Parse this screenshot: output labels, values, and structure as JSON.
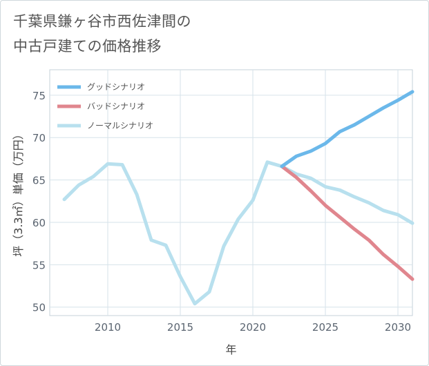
{
  "title": {
    "line1": "千葉県鎌ヶ谷市西佐津間の",
    "line2": "中古戸建ての価格推移"
  },
  "chart_data": {
    "type": "line",
    "xlabel": "年",
    "ylabel": "坪（3.3㎡）単価（万円）",
    "xlim": [
      2006,
      2031
    ],
    "ylim": [
      49,
      78
    ],
    "xticks": [
      2010,
      2015,
      2020,
      2025,
      2030
    ],
    "yticks": [
      50,
      55,
      60,
      65,
      70,
      75
    ],
    "grid": true,
    "legend_position": "top-left",
    "series": [
      {
        "name": "グッドシナリオ",
        "color": "#6bb8ea",
        "x": [
          2022,
          2023,
          2024,
          2025,
          2026,
          2027,
          2028,
          2029,
          2030,
          2031
        ],
        "values": [
          66.6,
          67.8,
          68.4,
          69.3,
          70.7,
          71.5,
          72.5,
          73.5,
          74.4,
          75.4
        ]
      },
      {
        "name": "バッドシナリオ",
        "color": "#e0868e",
        "x": [
          2022,
          2023,
          2024,
          2025,
          2026,
          2027,
          2028,
          2029,
          2030,
          2031
        ],
        "values": [
          66.6,
          65.3,
          63.7,
          62.0,
          60.6,
          59.2,
          57.9,
          56.2,
          54.8,
          53.3
        ]
      },
      {
        "name": "ノーマルシナリオ",
        "color": "#b8e0ee",
        "x": [
          2007,
          2008,
          2009,
          2010,
          2011,
          2012,
          2013,
          2014,
          2015,
          2016,
          2017,
          2018,
          2019,
          2020,
          2021,
          2022,
          2023,
          2024,
          2025,
          2026,
          2027,
          2028,
          2029,
          2030,
          2031
        ],
        "values": [
          62.7,
          64.4,
          65.4,
          66.9,
          66.8,
          63.3,
          57.9,
          57.3,
          53.6,
          50.4,
          51.8,
          57.2,
          60.4,
          62.6,
          67.1,
          66.6,
          65.7,
          65.2,
          64.2,
          63.8,
          63.0,
          62.3,
          61.4,
          60.9,
          59.9
        ]
      }
    ]
  }
}
